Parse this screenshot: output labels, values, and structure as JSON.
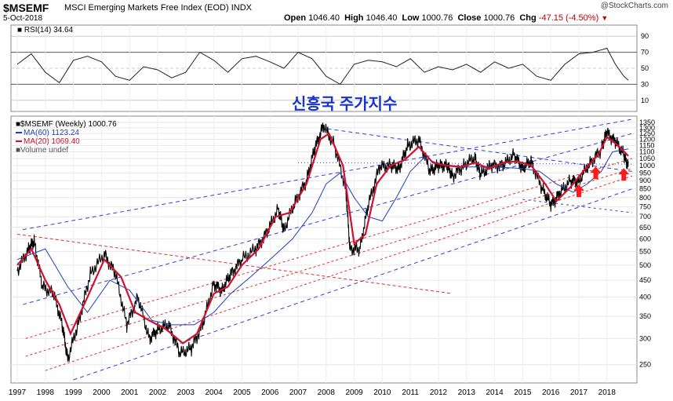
{
  "header": {
    "ticker": "$MSEMF",
    "full_name": "MSCI Emerging Markets Free Index (EOD)",
    "exchange": "INDX",
    "date": "5-Oct-2018",
    "open_label": "Open",
    "open": "1046.40",
    "high_label": "High",
    "high": "1046.40",
    "low_label": "Low",
    "low": "1000.76",
    "close_label": "Close",
    "close": "1000.76",
    "chg_label": "Chg",
    "chg": "-47.15 (-4.50%)",
    "brand": "@StockCharts.com"
  },
  "annotation_title": "신흥국 주가지수",
  "rsi_panel": {
    "label": "RSI(14)",
    "value": "34.64"
  },
  "legend": {
    "price": "$MSEMF (Weekly) 1000.76",
    "ma60": "MA(60) 1123.24",
    "ma20": "MA(20) 1069.40",
    "volume": "Volume undef"
  },
  "colors": {
    "price": "#000000",
    "ma60": "#1f3fbf",
    "ma20": "#d01030",
    "trend_blue": "#3b3bdd",
    "trend_red": "#e03030",
    "arrow": "#ff1a1a",
    "title": "#1a33c8"
  },
  "chart_data": [
    {
      "type": "line",
      "title": "RSI(14) 34.64",
      "y_ticks": [
        10,
        30,
        50,
        70,
        90
      ],
      "ylim": [
        0,
        100
      ],
      "x": [
        1997,
        1997.5,
        1998,
        1998.5,
        1999,
        1999.5,
        2000,
        2000.5,
        2001,
        2001.5,
        2002,
        2002.5,
        2003,
        2003.5,
        2004,
        2004.5,
        2005,
        2005.5,
        2006,
        2006.5,
        2007,
        2007.5,
        2008,
        2008.5,
        2009,
        2009.5,
        2010,
        2010.5,
        2011,
        2011.5,
        2012,
        2012.5,
        2013,
        2013.5,
        2014,
        2014.5,
        2015,
        2015.5,
        2016,
        2016.5,
        2017,
        2017.5,
        2018,
        2018.3,
        2018.6,
        2018.76
      ],
      "values": [
        55,
        68,
        45,
        32,
        60,
        65,
        58,
        40,
        35,
        52,
        48,
        38,
        45,
        70,
        60,
        45,
        62,
        65,
        58,
        50,
        70,
        62,
        40,
        30,
        55,
        60,
        58,
        52,
        62,
        45,
        52,
        48,
        55,
        45,
        58,
        50,
        55,
        40,
        35,
        55,
        68,
        70,
        75,
        55,
        40,
        35
      ]
    },
    {
      "type": "line",
      "title": "$MSEMF (Weekly) 1000.76",
      "xlabel": "",
      "ylabel": "",
      "x_ticks": [
        "1997",
        "1998",
        "1999",
        "2000",
        "2001",
        "2002",
        "2003",
        "2004",
        "2005",
        "2006",
        "2007",
        "2008",
        "2009",
        "2010",
        "2011",
        "2012",
        "2013",
        "2014",
        "2015",
        "2016",
        "2017",
        "2018"
      ],
      "y_ticks": [
        250,
        300,
        350,
        400,
        450,
        500,
        550,
        600,
        650,
        700,
        750,
        800,
        850,
        900,
        950,
        1000,
        1050,
        1100,
        1150,
        1200,
        1250,
        1300,
        1350
      ],
      "log_scale": true,
      "ylim": [
        225,
        1380
      ],
      "series": [
        {
          "name": "$MSEMF (Weekly)",
          "x": [
            1997.0,
            1997.4,
            1997.6,
            1997.9,
            1998.3,
            1998.6,
            1998.8,
            1999.2,
            1999.6,
            2000.1,
            2000.5,
            2000.9,
            2001.3,
            2001.7,
            2002.0,
            2002.4,
            2002.8,
            2003.2,
            2003.6,
            2004.0,
            2004.3,
            2004.6,
            2005.0,
            2005.5,
            2005.9,
            2006.3,
            2006.5,
            2006.9,
            2007.3,
            2007.6,
            2007.9,
            2008.3,
            2008.7,
            2008.85,
            2009.2,
            2009.5,
            2009.9,
            2010.3,
            2010.6,
            2010.9,
            2011.3,
            2011.7,
            2012.0,
            2012.3,
            2012.5,
            2012.9,
            2013.3,
            2013.5,
            2013.9,
            2014.3,
            2014.7,
            2015.0,
            2015.3,
            2015.7,
            2016.0,
            2016.3,
            2016.7,
            2017.0,
            2017.4,
            2017.8,
            2018.0,
            2018.3,
            2018.6,
            2018.76
          ],
          "values": [
            480,
            560,
            590,
            430,
            410,
            330,
            260,
            340,
            470,
            540,
            470,
            330,
            400,
            300,
            320,
            330,
            270,
            280,
            330,
            440,
            420,
            470,
            520,
            560,
            630,
            740,
            640,
            780,
            900,
            1130,
            1320,
            1150,
            850,
            560,
            560,
            760,
            990,
            1000,
            980,
            1150,
            1200,
            960,
            1000,
            1000,
            930,
            1000,
            1060,
            940,
            1000,
            1000,
            1080,
            980,
            1030,
            850,
            760,
            820,
            900,
            900,
            1020,
            1120,
            1260,
            1180,
            1080,
            1000.76
          ]
        },
        {
          "name": "MA(60)",
          "x": [
            1997.0,
            1998.0,
            1998.8,
            1999.5,
            2000.3,
            2001.0,
            2001.8,
            2002.5,
            2003.3,
            2004.0,
            2004.6,
            2005.3,
            2006.0,
            2006.8,
            2007.5,
            2008.0,
            2008.5,
            2009.0,
            2009.5,
            2010.0,
            2010.5,
            2011.0,
            2011.5,
            2012.0,
            2013.0,
            2014.0,
            2015.0,
            2015.6,
            2016.2,
            2016.8,
            2017.3,
            2017.8,
            2018.2,
            2018.76
          ],
          "values": [
            520,
            560,
            430,
            360,
            450,
            420,
            340,
            330,
            330,
            360,
            410,
            460,
            520,
            600,
            720,
            880,
            950,
            800,
            700,
            680,
            800,
            960,
            1060,
            1010,
            990,
            990,
            980,
            960,
            880,
            830,
            880,
            960,
            1100,
            1123
          ]
        },
        {
          "name": "MA(20)",
          "x": [
            1997.0,
            1997.5,
            1998.0,
            1998.5,
            1998.9,
            1999.5,
            2000.1,
            2000.7,
            2001.2,
            2001.7,
            2002.3,
            2002.9,
            2003.4,
            2004.0,
            2004.5,
            2005.0,
            2005.6,
            2006.2,
            2006.7,
            2007.3,
            2007.8,
            2008.1,
            2008.6,
            2009.0,
            2009.4,
            2009.8,
            2010.3,
            2010.8,
            2011.3,
            2011.8,
            2012.3,
            2012.8,
            2013.3,
            2013.8,
            2014.3,
            2014.8,
            2015.3,
            2015.8,
            2016.2,
            2016.7,
            2017.2,
            2017.7,
            2018.0,
            2018.4,
            2018.76
          ],
          "values": [
            500,
            560,
            450,
            380,
            310,
            400,
            520,
            460,
            360,
            340,
            320,
            290,
            310,
            410,
            430,
            500,
            560,
            700,
            720,
            880,
            1200,
            1250,
            1000,
            580,
            620,
            880,
            1000,
            1040,
            1140,
            1020,
            1000,
            990,
            1020,
            980,
            1020,
            1030,
            1000,
            880,
            780,
            860,
            970,
            1080,
            1220,
            1150,
            1069
          ]
        }
      ],
      "annotations": [
        {
          "type": "arrow",
          "direction": "up",
          "x": 2017.0,
          "y": 830
        },
        {
          "type": "arrow",
          "direction": "up",
          "x": 2017.6,
          "y": 940
        },
        {
          "type": "arrow",
          "direction": "up",
          "x": 2018.6,
          "y": 930
        }
      ]
    }
  ]
}
